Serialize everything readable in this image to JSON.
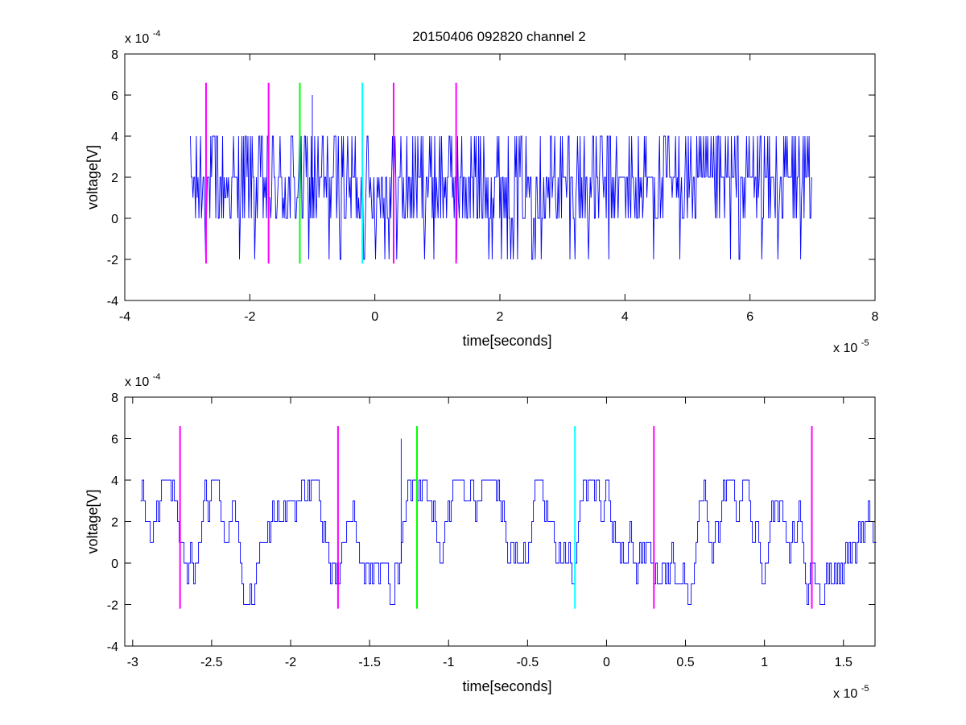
{
  "figure_title": "20150406 092820 channel 2",
  "chart_data": [
    {
      "type": "line",
      "title": "20150406 092820 channel 2",
      "xlabel": "time[seconds]",
      "ylabel": "voltage[V]",
      "x_exponent_label": "x 10",
      "x_exponent": "-5",
      "y_exponent_label": "x 10",
      "y_exponent": "-4",
      "xlim": [
        -4,
        8
      ],
      "ylim": [
        -4,
        8
      ],
      "x_unit_scale": 1e-05,
      "y_unit_scale": 0.0001,
      "x_ticks": [
        -4,
        -2,
        0,
        2,
        4,
        6,
        8
      ],
      "x_tick_labels": [
        "-4",
        "-2",
        "0",
        "2",
        "4",
        "6",
        "8"
      ],
      "y_ticks": [
        -4,
        -2,
        0,
        2,
        4,
        6,
        8
      ],
      "y_tick_labels": [
        "-4",
        "-2",
        "0",
        "2",
        "4",
        "6",
        "8"
      ],
      "grid": false,
      "signal": {
        "color": "#0000ff",
        "x_start": -2.95,
        "x_end": 7.0,
        "levels": [
          -2,
          0,
          1,
          2,
          4
        ],
        "note_peak_value": 6
      },
      "markers": [
        {
          "x": -2.7,
          "color": "#ff00ff",
          "y_range": [
            -2.2,
            6.6
          ]
        },
        {
          "x": -1.7,
          "color": "#ff00ff",
          "y_range": [
            -2.2,
            6.6
          ]
        },
        {
          "x": -1.2,
          "color": "#00ff00",
          "y_range": [
            -2.2,
            6.6
          ]
        },
        {
          "x": -0.2,
          "color": "#00ffff",
          "y_range": [
            -2.2,
            6.6
          ]
        },
        {
          "x": 0.3,
          "color": "#ff00ff",
          "y_range": [
            -2.2,
            6.6
          ]
        },
        {
          "x": 1.3,
          "color": "#ff00ff",
          "y_range": [
            -2.2,
            6.6
          ]
        }
      ]
    },
    {
      "type": "line",
      "title": "",
      "xlabel": "time[seconds]",
      "ylabel": "voltage[V]",
      "x_exponent_label": "x 10",
      "x_exponent": "-5",
      "y_exponent_label": "x 10",
      "y_exponent": "-4",
      "xlim": [
        -3.05,
        1.7
      ],
      "ylim": [
        -4,
        8
      ],
      "x_unit_scale": 1e-05,
      "y_unit_scale": 0.0001,
      "x_ticks": [
        -3,
        -2.5,
        -2,
        -1.5,
        -1,
        -0.5,
        0,
        0.5,
        1,
        1.5
      ],
      "x_tick_labels": [
        "-3",
        "-2.5",
        "-2",
        "-1.5",
        "-1",
        "-0.5",
        "0",
        "0.5",
        "1",
        "1.5"
      ],
      "y_ticks": [
        -4,
        -2,
        0,
        2,
        4,
        6,
        8
      ],
      "y_tick_labels": [
        "-4",
        "-2",
        "0",
        "2",
        "4",
        "6",
        "8"
      ],
      "grid": false,
      "signal": {
        "color": "#0000ff",
        "x_start": -2.95,
        "x_end": 1.7,
        "levels": [
          -2,
          -1,
          0,
          1,
          2,
          3,
          4
        ],
        "note_peak_value": 6
      },
      "markers": [
        {
          "x": -2.7,
          "color": "#ff00ff",
          "y_range": [
            -2.2,
            6.6
          ]
        },
        {
          "x": -1.7,
          "color": "#ff00ff",
          "y_range": [
            -2.2,
            6.6
          ]
        },
        {
          "x": -1.2,
          "color": "#00ff00",
          "y_range": [
            -2.2,
            6.6
          ]
        },
        {
          "x": -0.2,
          "color": "#00ffff",
          "y_range": [
            -2.2,
            6.6
          ]
        },
        {
          "x": 0.3,
          "color": "#ff00ff",
          "y_range": [
            -2.2,
            6.6
          ]
        },
        {
          "x": 1.3,
          "color": "#ff00ff",
          "y_range": [
            -2.2,
            6.6
          ]
        }
      ]
    }
  ]
}
